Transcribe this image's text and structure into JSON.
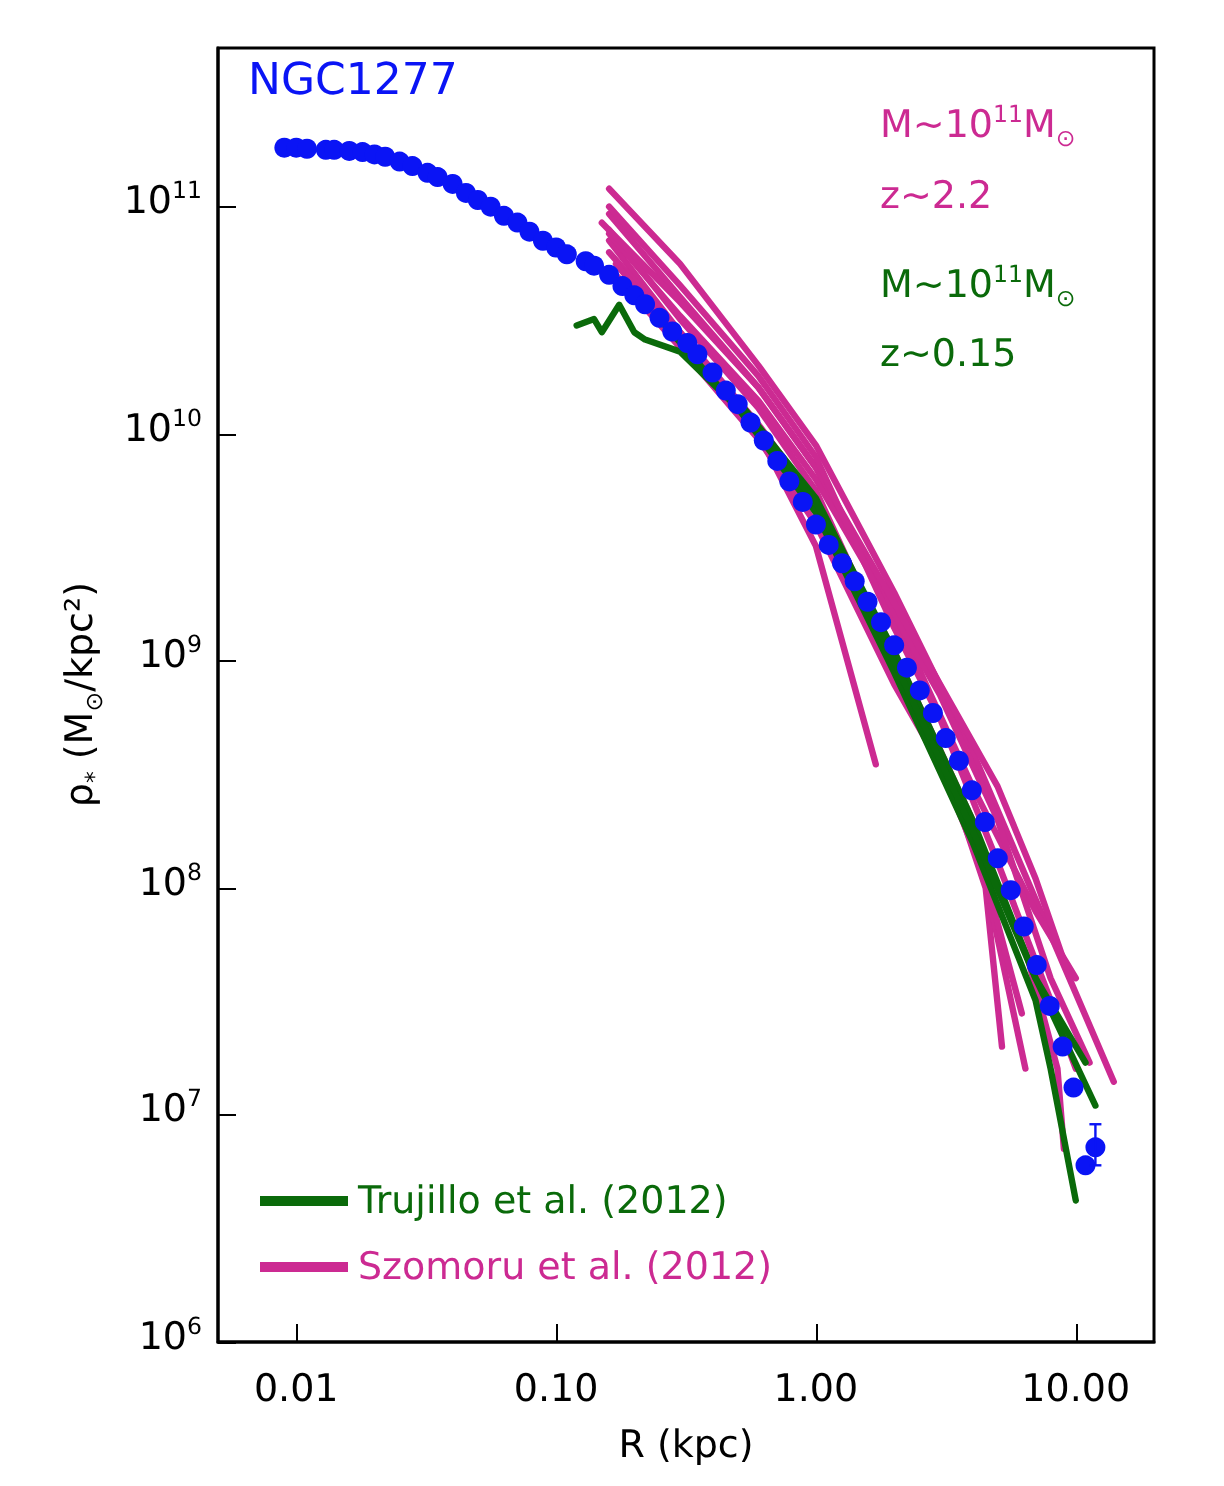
{
  "chart_data": {
    "type": "line",
    "xlabel": "R (kpc)",
    "ylabel": "ρ$_{*}$ (M$_{⊙}$/kpc²)",
    "log": "xy",
    "legend": "bottom left",
    "grid": false,
    "xlim": [
      0.005,
      20
    ],
    "xticks": [
      {
        "value": 0.01,
        "label": "0.01"
      },
      {
        "value": 0.1,
        "label": "0.10"
      },
      {
        "value": 1,
        "label": "1.00"
      },
      {
        "value": 10,
        "label": "10.00"
      }
    ],
    "ylim": [
      1000000.0,
      500000000000.0
    ],
    "yticks": [
      {
        "value": 1000000.0,
        "label": "10$^{6}$"
      },
      {
        "value": 10000000.0,
        "label": "10$^{7}$"
      },
      {
        "value": 100000000.0,
        "label": "10$^{8}$"
      },
      {
        "value": 1000000000.0,
        "label": "10$^{9}$"
      },
      {
        "value": 10000000000.0,
        "label": "10$^{10}$"
      },
      {
        "value": 100000000000.0,
        "label": "10$^{11}$"
      }
    ],
    "annotations": [
      "NGC1277",
      "M~10$^{11}$M$_{⊙}$",
      "z~2.2",
      "M~10$^{11}$M$_{⊙}$",
      "z~0.15"
    ],
    "series": [
      {
        "name": "Szomoru et al. (2012)",
        "color": "#cc2a92",
        "x": [
          0.16,
          0.3,
          0.6,
          1.0,
          2.0,
          4.0,
          7.0,
          14
        ],
        "values": [
          120000000000.0,
          56000000000.0,
          20000000000.0,
          8900000000.0,
          2000000000.0,
          400000000.0,
          89000000.0,
          14000000.0
        ]
      },
      {
        "color": "#cc2a92",
        "x": [
          0.16,
          0.3,
          0.6,
          1,
          2,
          4,
          7,
          10
        ],
        "values": [
          93000000000.0,
          40000000000.0,
          16000000000.0,
          7100000000.0,
          1600000000.0,
          280000000.0,
          79000000.0,
          40000000.0
        ]
      },
      {
        "color": "#cc2a92",
        "x": [
          0.16,
          0.3,
          0.6,
          1,
          2,
          3,
          4.5,
          5.2
        ],
        "values": [
          79000000000.0,
          32000000000.0,
          13000000000.0,
          5600000000.0,
          1000000000.0,
          400000000.0,
          100000000.0,
          20000000.0
        ]
      },
      {
        "color": "#cc2a92",
        "x": [
          0.16,
          0.3,
          0.6,
          1.0,
          1.7
        ],
        "values": [
          71000000000.0,
          28000000000.0,
          10000000000.0,
          3200000000.0,
          350000000.0
        ]
      },
      {
        "color": "#cc2a92",
        "x": [
          0.16,
          0.3,
          0.6,
          1,
          2,
          4,
          6.4
        ],
        "values": [
          63000000000.0,
          28000000000.0,
          11000000000.0,
          5000000000.0,
          1100000000.0,
          200000000.0,
          16000000.0
        ]
      },
      {
        "color": "#cc2a92",
        "x": [
          0.17,
          0.3,
          0.6,
          1,
          2,
          4,
          6.5,
          8.5,
          9.0
        ],
        "values": [
          56000000000.0,
          26000000000.0,
          10000000000.0,
          4500000000.0,
          890000000.0,
          180000000.0,
          50000000.0,
          16000000.0,
          7100000.0
        ]
      },
      {
        "color": "#cc2a92",
        "x": [
          0.16,
          0.3,
          0.6,
          1,
          2,
          3,
          5,
          8,
          11.3
        ],
        "values": [
          76000000000.0,
          33000000000.0,
          14000000000.0,
          6300000000.0,
          1600000000.0,
          710000000.0,
          200000000.0,
          40000000.0,
          17000000.0
        ]
      },
      {
        "color": "#cc2a92",
        "x": [
          0.15,
          0.3,
          0.6,
          1,
          2,
          3,
          5,
          7,
          9.5
        ],
        "values": [
          85000000000.0,
          38000000000.0,
          16000000000.0,
          7100000000.0,
          1800000000.0,
          790000000.0,
          280000000.0,
          110000000.0,
          40000000.0
        ]
      },
      {
        "color": "#cc2a92",
        "x": [
          0.17,
          0.3,
          0.6,
          1,
          2,
          3,
          4.5,
          6.2
        ],
        "values": [
          50000000000.0,
          24000000000.0,
          9500000000.0,
          4000000000.0,
          790000000.0,
          350000000.0,
          110000000.0,
          28000000.0
        ]
      },
      {
        "color": "#cc2a92",
        "x": [
          0.16,
          0.3,
          0.6,
          1,
          2,
          3,
          5,
          8,
          10
        ],
        "values": [
          100000000000.0,
          45000000000.0,
          18000000000.0,
          7900000000.0,
          1400000000.0,
          560000000.0,
          130000000.0,
          32000000.0,
          16000000.0
        ]
      },
      {
        "name": "Trujillo et al. (2012)",
        "color": "#0a6a0a",
        "x": [
          0.12,
          0.14,
          0.15,
          0.175,
          0.2,
          0.22,
          0.3,
          0.5,
          1,
          2,
          4,
          7,
          8,
          10
        ],
        "values": [
          30000000000.0,
          32000000000.0,
          28000000000.0,
          37000000000.0,
          28000000000.0,
          26000000000.0,
          23000000000.0,
          13000000000.0,
          4500000000.0,
          890000000.0,
          160000000.0,
          32000000.0,
          16000000.0,
          4200000.0
        ]
      },
      {
        "color": "#0a6a0a",
        "x": [
          0.5,
          1,
          2,
          4,
          7,
          11.9
        ],
        "values": [
          14000000000.0,
          5200000000.0,
          1100000000.0,
          200000000.0,
          40000000.0,
          11000000.0
        ]
      },
      {
        "color": "#0a6a0a",
        "x": [
          0.25,
          0.5,
          1,
          2,
          4,
          7,
          10.9
        ],
        "values": [
          32000000000.0,
          13000000000.0,
          5000000000.0,
          1000000000.0,
          180000000.0,
          40000000.0,
          17000000.0
        ]
      },
      {
        "type": "scatter",
        "marker": "circle",
        "color": "#0a14f5",
        "x": [
          0.009,
          0.01,
          0.011,
          0.013,
          0.014,
          0.016,
          0.018,
          0.02,
          0.022,
          0.025,
          0.028,
          0.032,
          0.035,
          0.04,
          0.045,
          0.05,
          0.056,
          0.063,
          0.071,
          0.079,
          0.089,
          0.1,
          0.11,
          0.13,
          0.14,
          0.16,
          0.18,
          0.2,
          0.22,
          0.25,
          0.28,
          0.32,
          0.35,
          0.4,
          0.45,
          0.5,
          0.56,
          0.63,
          0.71,
          0.79,
          0.89,
          1.0,
          1.12,
          1.26,
          1.41,
          1.58,
          1.78,
          2.0,
          2.24,
          2.51,
          2.82,
          3.16,
          3.55,
          3.98,
          4.47,
          5.01,
          5.62,
          6.31,
          7.08,
          7.94,
          8.9,
          9.8,
          10.9,
          11.9
        ],
        "values": [
          182000000000.0,
          182000000000.0,
          180000000000.0,
          178000000000.0,
          178000000000.0,
          176000000000.0,
          174000000000.0,
          170000000000.0,
          166000000000.0,
          158000000000.0,
          151000000000.0,
          141000000000.0,
          135000000000.0,
          126000000000.0,
          115000000000.0,
          107000000000.0,
          100000000000.0,
          91200000000.0,
          85100000000.0,
          77600000000.0,
          70800000000.0,
          66100000000.0,
          61700000000.0,
          57500000000.0,
          55000000000.0,
          50100000000.0,
          44700000000.0,
          40700000000.0,
          37200000000.0,
          32400000000.0,
          28200000000.0,
          25100000000.0,
          22400000000.0,
          18600000000.0,
          15500000000.0,
          13500000000.0,
          11200000000.0,
          9330000000.0,
          7590000000.0,
          6170000000.0,
          5010000000.0,
          3980000000.0,
          3240000000.0,
          2690000000.0,
          2240000000.0,
          1820000000.0,
          1480000000.0,
          1170000000.0,
          933000000.0,
          741000000.0,
          589000000.0,
          457000000.0,
          363000000.0,
          269000000.0,
          195000000.0,
          135000000.0,
          97700000.0,
          67600000.0,
          45700000.0,
          30200000.0,
          20000000.0,
          13200000.0,
          6000000.0,
          7200000.0
        ],
        "errors": [
          null,
          null,
          null,
          null,
          null,
          null,
          null,
          null,
          null,
          null,
          null,
          null,
          null,
          null,
          null,
          null,
          null,
          null,
          null,
          null,
          null,
          null,
          null,
          null,
          null,
          null,
          null,
          null,
          null,
          null,
          null,
          null,
          null,
          null,
          null,
          null,
          null,
          null,
          null,
          null,
          null,
          null,
          null,
          null,
          null,
          null,
          null,
          null,
          null,
          null,
          null,
          null,
          null,
          null,
          null,
          null,
          null,
          null,
          null,
          null,
          null,
          null,
          null,
          [
            6000000.0,
            9100000.0
          ]
        ]
      }
    ]
  }
}
